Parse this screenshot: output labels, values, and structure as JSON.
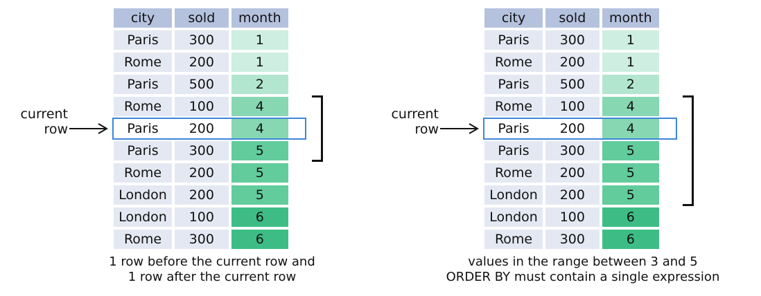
{
  "colors": {
    "header_bg": "#b5c2de",
    "cell_bg": "#e4e8f2",
    "month_shades": {
      "1": "#cdeee0",
      "2": "#b2e6cf",
      "4": "#86d7b2",
      "5": "#62cc9c",
      "6": "#3dbd85"
    },
    "current_row_border": "#3c86d8"
  },
  "headers": [
    "city",
    "sold",
    "month"
  ],
  "rows": [
    {
      "city": "Paris",
      "sold": "300",
      "month": "1"
    },
    {
      "city": "Rome",
      "sold": "200",
      "month": "1"
    },
    {
      "city": "Paris",
      "sold": "500",
      "month": "2"
    },
    {
      "city": "Rome",
      "sold": "100",
      "month": "4"
    },
    {
      "city": "Paris",
      "sold": "200",
      "month": "4"
    },
    {
      "city": "Paris",
      "sold": "300",
      "month": "5"
    },
    {
      "city": "Rome",
      "sold": "200",
      "month": "5"
    },
    {
      "city": "London",
      "sold": "200",
      "month": "5"
    },
    {
      "city": "London",
      "sold": "100",
      "month": "6"
    },
    {
      "city": "Rome",
      "sold": "300",
      "month": "6"
    }
  ],
  "current_row_index": 4,
  "left": {
    "current_label": [
      "current",
      "row"
    ],
    "bracket_rows": [
      3,
      5
    ],
    "caption": [
      "1 row before the current row and",
      "1 row after the current row"
    ]
  },
  "right": {
    "current_label": [
      "current",
      "row"
    ],
    "bracket_rows": [
      3,
      7
    ],
    "caption": [
      "values in the range between 3 and 5",
      "ORDER  BY must contain a single expression"
    ]
  }
}
